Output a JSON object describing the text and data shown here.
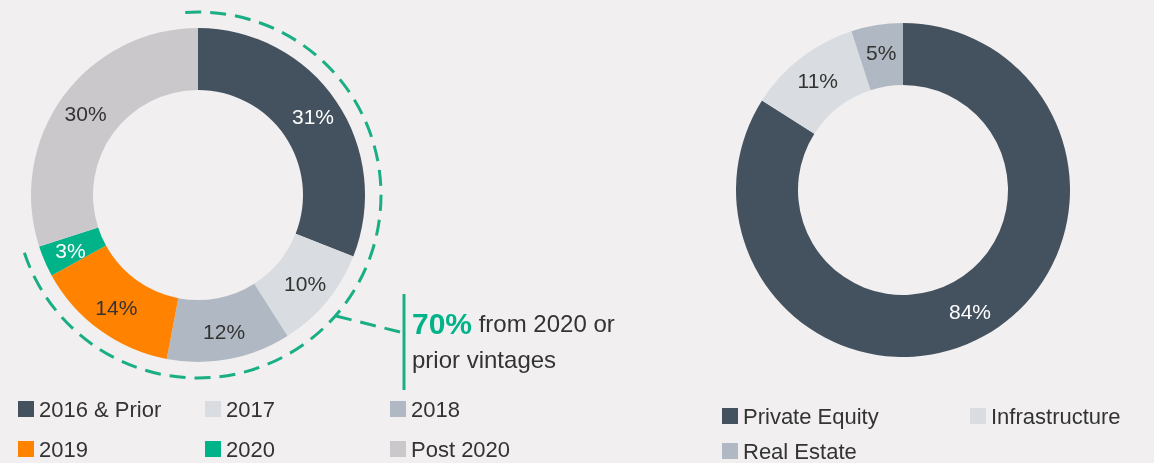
{
  "chart_data": [
    {
      "type": "donut",
      "categories": [
        "2016 & Prior",
        "2017",
        "2018",
        "2019",
        "2020",
        "Post 2020"
      ],
      "values": [
        31,
        10,
        12,
        14,
        3,
        30
      ],
      "colors": [
        "#44525f",
        "#d9dde1",
        "#b0b9c3",
        "#ff8200",
        "#00b388",
        "#cbc8cc"
      ],
      "value_labels": [
        "31%",
        "10%",
        "12%",
        "14%",
        "3%",
        "30%"
      ],
      "legend": "bottom",
      "annotations": [
        "70% from 2020 or prior vintages"
      ]
    },
    {
      "type": "donut",
      "categories": [
        "Private Equity",
        "Infrastructure",
        "Real Estate"
      ],
      "values": [
        84,
        11,
        5
      ],
      "colors": [
        "#44525f",
        "#d9dde1",
        "#b0b9c3"
      ],
      "value_labels": [
        "84%",
        "11%",
        "5%"
      ],
      "legend": "bottom"
    }
  ]
}
